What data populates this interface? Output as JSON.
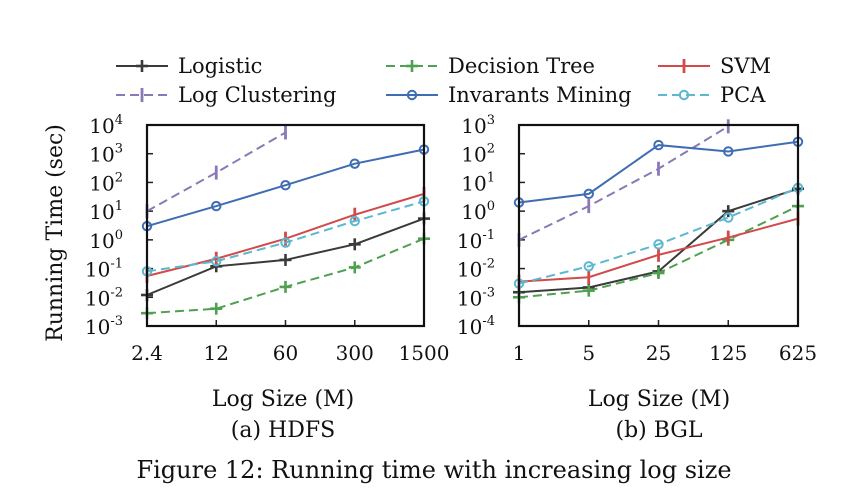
{
  "figure": {
    "caption": "Figure 12: Running time with increasing log size",
    "ylabel": "Running Time (sec)"
  },
  "legend": [
    {
      "name": "Logistic",
      "color": "#3a3a3a",
      "dash": "solid",
      "marker": "plus"
    },
    {
      "name": "Decision Tree",
      "color": "#4fa04f",
      "dash": "dashed",
      "marker": "plus"
    },
    {
      "name": "SVM",
      "color": "#d24a4a",
      "dash": "solid",
      "marker": "vbar"
    },
    {
      "name": "Log Clustering",
      "color": "#8a78b8",
      "dash": "dashed",
      "marker": "vbar"
    },
    {
      "name": "Invarants Mining",
      "color": "#3f6db3",
      "dash": "solid",
      "marker": "circle"
    },
    {
      "name": "PCA",
      "color": "#5bb8cf",
      "dash": "dashed",
      "marker": "circle"
    }
  ],
  "chart_data": [
    {
      "type": "line",
      "subtitle": "(a) HDFS",
      "xlabel": "Log Size (M)",
      "categories": [
        "2.4",
        "12",
        "60",
        "300",
        "1500"
      ],
      "ylim_exp": [
        -3,
        4
      ],
      "yscale": "log10",
      "yticks": [
        {
          "base": "10",
          "exp": "-3"
        },
        {
          "base": "10",
          "exp": "-2"
        },
        {
          "base": "10",
          "exp": "-1"
        },
        {
          "base": "10",
          "exp": "0"
        },
        {
          "base": "10",
          "exp": "1"
        },
        {
          "base": "10",
          "exp": "2"
        },
        {
          "base": "10",
          "exp": "3"
        },
        {
          "base": "10",
          "exp": "4"
        }
      ],
      "series": [
        {
          "name": "Logistic",
          "values": [
            0.012,
            0.12,
            0.2,
            0.7,
            5.5
          ]
        },
        {
          "name": "Decision Tree",
          "values": [
            0.0028,
            0.004,
            0.023,
            0.11,
            1.1
          ]
        },
        {
          "name": "SVM",
          "values": [
            0.055,
            0.22,
            1.1,
            7.5,
            40
          ]
        },
        {
          "name": "Log Clustering",
          "values": [
            10,
            220,
            5500,
            null,
            null
          ]
        },
        {
          "name": "Invarants Mining",
          "values": [
            3,
            15,
            80,
            450,
            1400
          ]
        },
        {
          "name": "PCA",
          "values": [
            0.08,
            0.18,
            0.8,
            4.5,
            22
          ]
        }
      ]
    },
    {
      "type": "line",
      "subtitle": "(b) BGL",
      "xlabel": "Log Size (M)",
      "categories": [
        "1",
        "5",
        "25",
        "125",
        "625"
      ],
      "ylim_exp": [
        -4,
        3
      ],
      "yscale": "log10",
      "yticks": [
        {
          "base": "10",
          "exp": "-4"
        },
        {
          "base": "10",
          "exp": "-3"
        },
        {
          "base": "10",
          "exp": "-2"
        },
        {
          "base": "10",
          "exp": "-1"
        },
        {
          "base": "10",
          "exp": "0"
        },
        {
          "base": "10",
          "exp": "1"
        },
        {
          "base": "10",
          "exp": "2"
        },
        {
          "base": "10",
          "exp": "3"
        }
      ],
      "series": [
        {
          "name": "Logistic",
          "values": [
            0.0015,
            0.0022,
            0.008,
            1.0,
            6.0
          ]
        },
        {
          "name": "Decision Tree",
          "values": [
            0.001,
            0.0017,
            0.007,
            0.1,
            1.5
          ]
        },
        {
          "name": "SVM",
          "values": [
            0.0035,
            0.005,
            0.03,
            0.12,
            0.55
          ]
        },
        {
          "name": "Log Clustering",
          "values": [
            0.1,
            1.5,
            30,
            900,
            null
          ]
        },
        {
          "name": "Invarants Mining",
          "values": [
            2,
            4,
            200,
            120,
            260
          ]
        },
        {
          "name": "PCA",
          "values": [
            0.003,
            0.012,
            0.07,
            0.6,
            6.5
          ]
        }
      ]
    }
  ]
}
